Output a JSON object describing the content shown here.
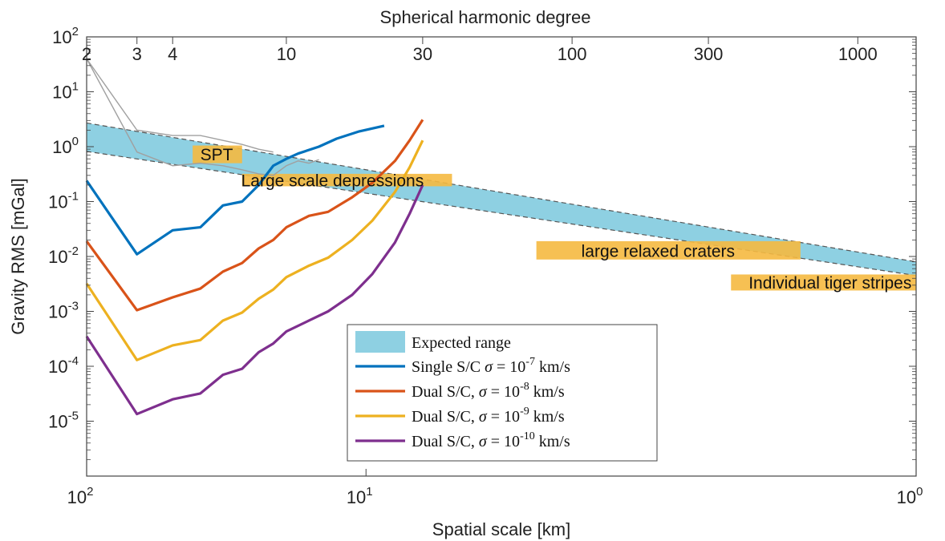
{
  "chart_data": {
    "type": "line",
    "title": "",
    "xlabel": "Spatial scale [km]",
    "ylabel": "Gravity RMS [mGal]",
    "top_xlabel": "Spherical harmonic degree",
    "x_scale": "reciprocal (spatial scale, decreasing to the right)",
    "y_scale": "log",
    "ylim": [
      1e-06,
      100
    ],
    "xlim_degree": [
      2,
      1600
    ],
    "grid": false,
    "legend_position": "bottom-center",
    "x_bottom_ticks": [
      {
        "label": "10",
        "sup": "2",
        "degree": 1.9
      },
      {
        "label": "10",
        "sup": "1",
        "degree": 19
      },
      {
        "label": "10",
        "sup": "0",
        "degree": 1600
      }
    ],
    "y_ticks": [
      {
        "label": "10",
        "sup": "-5",
        "value": 1e-05
      },
      {
        "label": "10",
        "sup": "-4",
        "value": 0.0001
      },
      {
        "label": "10",
        "sup": "-3",
        "value": 0.001
      },
      {
        "label": "10",
        "sup": "-2",
        "value": 0.01
      },
      {
        "label": "10",
        "sup": "-1",
        "value": 0.1
      },
      {
        "label": "10",
        "sup": "0",
        "value": 1
      },
      {
        "label": "10",
        "sup": "1",
        "value": 10
      },
      {
        "label": "10",
        "sup": "2",
        "value": 100
      }
    ],
    "x_top_ticks": [
      {
        "label": "2",
        "degree": 2
      },
      {
        "label": "3",
        "degree": 3
      },
      {
        "label": "4",
        "degree": 4
      },
      {
        "label": "10",
        "degree": 10
      },
      {
        "label": "30",
        "degree": 30
      },
      {
        "label": "100",
        "degree": 100
      },
      {
        "label": "300",
        "degree": 300
      },
      {
        "label": "1000",
        "degree": 1000
      }
    ],
    "expected_range": {
      "upper": [
        [
          2,
          2.7
        ],
        [
          1600,
          0.008
        ]
      ],
      "lower": [
        [
          2,
          0.82
        ],
        [
          1600,
          0.0045
        ]
      ],
      "color": "#8ed0e2"
    },
    "series": [
      {
        "name": "Single S/C",
        "sigma_base": "10",
        "sigma_exp": "-7",
        "color": "#0072bd",
        "points": [
          [
            2,
            0.24
          ],
          [
            3,
            0.011
          ],
          [
            4,
            0.03
          ],
          [
            5,
            0.034
          ],
          [
            6,
            0.085
          ],
          [
            7,
            0.1
          ],
          [
            8,
            0.2
          ],
          [
            9,
            0.45
          ],
          [
            10,
            0.6
          ],
          [
            11,
            0.75
          ],
          [
            13,
            1.0
          ],
          [
            15,
            1.4
          ],
          [
            18,
            1.9
          ],
          [
            22,
            2.4
          ]
        ]
      },
      {
        "name": "Dual S/C,",
        "sigma_base": "10",
        "sigma_exp": "-8",
        "color": "#d95319",
        "points": [
          [
            2,
            0.019
          ],
          [
            3,
            0.00105
          ],
          [
            4,
            0.0018
          ],
          [
            5,
            0.0026
          ],
          [
            6,
            0.0053
          ],
          [
            7,
            0.0076
          ],
          [
            8,
            0.014
          ],
          [
            9,
            0.02
          ],
          [
            10,
            0.034
          ],
          [
            12,
            0.055
          ],
          [
            14,
            0.065
          ],
          [
            17,
            0.12
          ],
          [
            20,
            0.22
          ],
          [
            24,
            0.55
          ],
          [
            27,
            1.3
          ],
          [
            30,
            3.1
          ]
        ]
      },
      {
        "name": "Dual S/C,",
        "sigma_base": "10",
        "sigma_exp": "-9",
        "color": "#edb120",
        "points": [
          [
            2,
            0.0032
          ],
          [
            3,
            0.00013
          ],
          [
            4,
            0.00024
          ],
          [
            5,
            0.0003
          ],
          [
            6,
            0.00068
          ],
          [
            7,
            0.00095
          ],
          [
            8,
            0.0017
          ],
          [
            9,
            0.0025
          ],
          [
            10,
            0.0042
          ],
          [
            12,
            0.0068
          ],
          [
            14,
            0.0095
          ],
          [
            17,
            0.02
          ],
          [
            20,
            0.045
          ],
          [
            24,
            0.15
          ],
          [
            27,
            0.42
          ],
          [
            30,
            1.3
          ]
        ]
      },
      {
        "name": "Dual S/C,",
        "sigma_base": "10",
        "sigma_exp": "-10",
        "color": "#7e2f8e",
        "points": [
          [
            2,
            0.00035
          ],
          [
            3,
            1.35e-05
          ],
          [
            4,
            2.5e-05
          ],
          [
            5,
            3.2e-05
          ],
          [
            6,
            7e-05
          ],
          [
            7,
            9e-05
          ],
          [
            8,
            0.00018
          ],
          [
            9,
            0.00026
          ],
          [
            10,
            0.00043
          ],
          [
            12,
            0.00068
          ],
          [
            14,
            0.001
          ],
          [
            17,
            0.002
          ],
          [
            20,
            0.0048
          ],
          [
            24,
            0.018
          ],
          [
            27,
            0.06
          ],
          [
            30,
            0.2
          ]
        ]
      }
    ],
    "observed_spectrum": {
      "color": "#a0a0a0",
      "points": [
        [
          2,
          40
        ],
        [
          3,
          0.8
        ],
        [
          4,
          0.45
        ],
        [
          5,
          0.5
        ],
        [
          6,
          0.45
        ],
        [
          7,
          0.38
        ],
        [
          8,
          0.32
        ],
        [
          9,
          0.3
        ],
        [
          10,
          0.45
        ],
        [
          11,
          0.55
        ],
        [
          12,
          0.5
        ],
        [
          13,
          0.58
        ]
      ]
    },
    "observed_spectrum_upper": {
      "color": "#a0a0a0",
      "points": [
        [
          2,
          40
        ],
        [
          3,
          2.0
        ],
        [
          4,
          1.6
        ],
        [
          5,
          1.6
        ],
        [
          6,
          1.3
        ],
        [
          7,
          1.1
        ],
        [
          8,
          0.9
        ],
        [
          9,
          0.8
        ]
      ]
    },
    "annotations": [
      {
        "text": "SPT",
        "box_degree": [
          4.7,
          7.0
        ],
        "box_value": [
          0.5,
          1.05
        ],
        "text_degree": 5.7,
        "text_value": 0.72
      },
      {
        "text": "Large scale depressions",
        "box_degree": [
          7.0,
          38
        ],
        "box_value": [
          0.19,
          0.32
        ],
        "text_degree": 14.5,
        "text_value": 0.24
      },
      {
        "text": "large relaxed craters",
        "box_degree": [
          75,
          630
        ],
        "box_value": [
          0.0088,
          0.019
        ],
        "text_degree": 200,
        "text_value": 0.0125
      },
      {
        "text": "Individual tiger stripes",
        "box_degree": [
          360,
          1600
        ],
        "box_value": [
          0.0024,
          0.0047
        ],
        "text_degree": 800,
        "text_value": 0.0033
      }
    ],
    "annotation_color": "#f5b940",
    "legend": {
      "expected_label": "Expected range",
      "sigma_symbol": "σ =",
      "unit": "km/s"
    }
  }
}
